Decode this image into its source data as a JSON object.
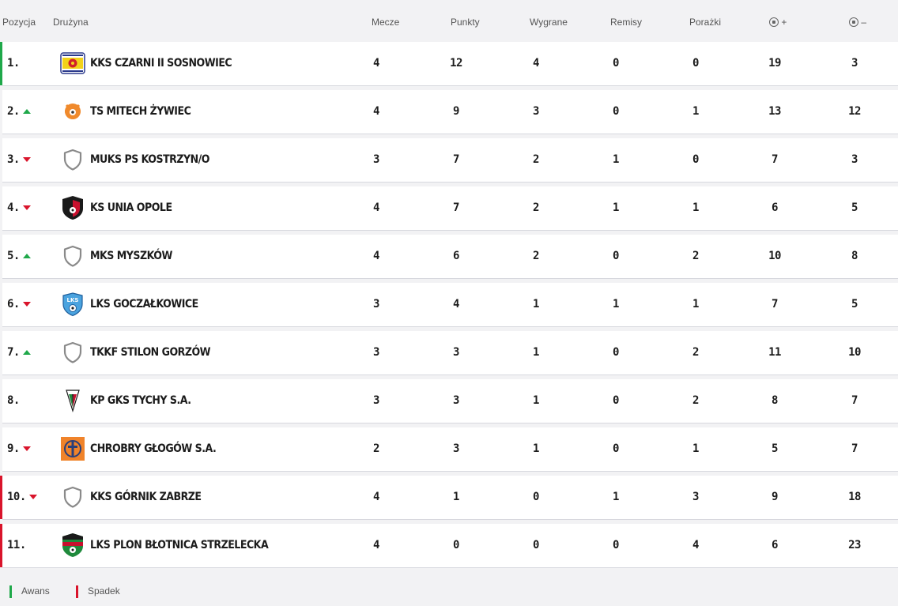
{
  "header": {
    "position": "Pozycja",
    "team": "Drużyna",
    "matches": "Mecze",
    "points": "Punkty",
    "wins": "Wygrane",
    "draws": "Remisy",
    "losses": "Porażki",
    "goals_for_sign": "+",
    "goals_against_sign": "–"
  },
  "rows": [
    {
      "pos": "1.",
      "trend": "",
      "zone": "promotion",
      "team": "KKS CZARNI II SOSNOWIEC",
      "crest": "czarni-crest",
      "m": "4",
      "p": "12",
      "w": "4",
      "d": "0",
      "l": "0",
      "gf": "19",
      "ga": "3"
    },
    {
      "pos": "2.",
      "trend": "up",
      "zone": "",
      "team": "TS MITECH ŻYWIEC",
      "crest": "mitech-crest",
      "m": "4",
      "p": "9",
      "w": "3",
      "d": "0",
      "l": "1",
      "gf": "13",
      "ga": "12"
    },
    {
      "pos": "3.",
      "trend": "down",
      "zone": "",
      "team": "MUKS PS KOSTRZYN/O",
      "crest": "placeholder-shield-icon",
      "m": "3",
      "p": "7",
      "w": "2",
      "d": "1",
      "l": "0",
      "gf": "7",
      "ga": "3"
    },
    {
      "pos": "4.",
      "trend": "down",
      "zone": "",
      "team": "KS UNIA OPOLE",
      "crest": "unia-crest",
      "m": "4",
      "p": "7",
      "w": "2",
      "d": "1",
      "l": "1",
      "gf": "6",
      "ga": "5"
    },
    {
      "pos": "5.",
      "trend": "up",
      "zone": "",
      "team": "MKS MYSZKÓW",
      "crest": "placeholder-shield-icon",
      "m": "4",
      "p": "6",
      "w": "2",
      "d": "0",
      "l": "2",
      "gf": "10",
      "ga": "8"
    },
    {
      "pos": "6.",
      "trend": "down",
      "zone": "",
      "team": "LKS GOCZAŁKOWICE",
      "crest": "lks-crest",
      "m": "3",
      "p": "4",
      "w": "1",
      "d": "1",
      "l": "1",
      "gf": "7",
      "ga": "5"
    },
    {
      "pos": "7.",
      "trend": "up",
      "zone": "",
      "team": "TKKF STILON GORZÓW",
      "crest": "placeholder-shield-icon",
      "m": "3",
      "p": "3",
      "w": "1",
      "d": "0",
      "l": "2",
      "gf": "11",
      "ga": "10"
    },
    {
      "pos": "8.",
      "trend": "",
      "zone": "",
      "team": "KP GKS TYCHY S.A.",
      "crest": "tychy-crest",
      "m": "3",
      "p": "3",
      "w": "1",
      "d": "0",
      "l": "2",
      "gf": "8",
      "ga": "7"
    },
    {
      "pos": "9.",
      "trend": "down",
      "zone": "",
      "team": "CHROBRY GŁOGÓW S.A.",
      "crest": "chrobry-crest",
      "m": "2",
      "p": "3",
      "w": "1",
      "d": "0",
      "l": "1",
      "gf": "5",
      "ga": "7"
    },
    {
      "pos": "10.",
      "trend": "down",
      "zone": "relegation",
      "team": "KKS GÓRNIK ZABRZE",
      "crest": "placeholder-shield-icon",
      "m": "4",
      "p": "1",
      "w": "0",
      "d": "1",
      "l": "3",
      "gf": "9",
      "ga": "18"
    },
    {
      "pos": "11.",
      "trend": "",
      "zone": "relegation",
      "team": "LKS PLON BŁOTNICA STRZELECKA",
      "crest": "plon-crest",
      "m": "4",
      "p": "0",
      "w": "0",
      "d": "0",
      "l": "4",
      "gf": "6",
      "ga": "23"
    }
  ],
  "legend": {
    "promotion": "Awans",
    "relegation": "Spadek"
  },
  "colors": {
    "promotion": "#1fa84a",
    "relegation": "#d9142b",
    "up_arrow": "#1fa84a",
    "down_arrow": "#d9142b"
  }
}
